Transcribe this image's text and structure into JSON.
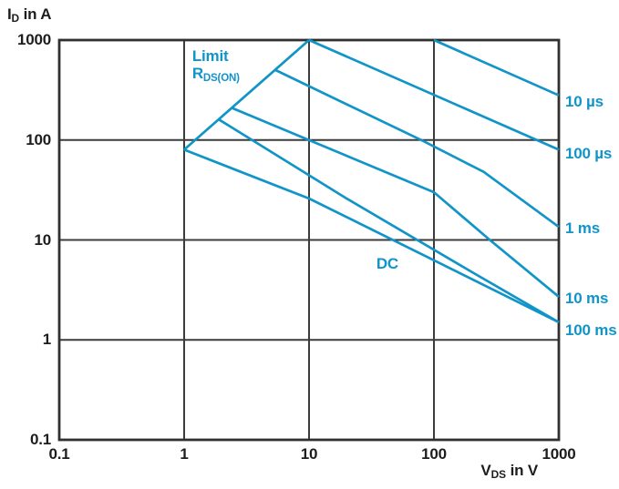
{
  "chart_data": {
    "type": "line",
    "description": "MOSFET safe operating area (SOA): drain current vs drain-source voltage, log-log",
    "colors": {
      "curve": "#1194c7",
      "grid": "#3c3c3c",
      "border": "#303030",
      "text": "#1d1d1d"
    },
    "grid": "major-decades-on",
    "legend_position": "right-edge-labels",
    "x_axis": {
      "scale": "log",
      "min": 0.1,
      "max": 1000,
      "title": {
        "main": "V",
        "sub": "DS",
        "rest": " in V"
      },
      "ticks": [
        {
          "v": 0.1,
          "label": "0.1"
        },
        {
          "v": 1,
          "label": "1"
        },
        {
          "v": 10,
          "label": "10"
        },
        {
          "v": 100,
          "label": "100"
        },
        {
          "v": 1000,
          "label": "1000"
        }
      ]
    },
    "y_axis": {
      "scale": "log",
      "min": 0.1,
      "max": 1000,
      "title": {
        "main": "I",
        "sub": "D",
        "rest": " in A"
      },
      "ticks": [
        {
          "v": 0.1,
          "label": "0.1"
        },
        {
          "v": 1,
          "label": "1"
        },
        {
          "v": 10,
          "label": "10"
        },
        {
          "v": 100,
          "label": "100"
        },
        {
          "v": 1000,
          "label": "1000"
        }
      ]
    },
    "series": [
      {
        "id": "limit-rdson",
        "name": "Limit RDS(ON)",
        "label": "",
        "points": [
          [
            1.0,
            80
          ],
          [
            10,
            1000
          ]
        ]
      },
      {
        "id": "pulse-10us",
        "name": "10 µs",
        "label": "10 µs",
        "label_dy": 7,
        "points": [
          [
            100,
            1000
          ],
          [
            1000,
            280
          ]
        ]
      },
      {
        "id": "pulse-100us",
        "name": "100 µs",
        "label": "100 µs",
        "label_dy": 5,
        "points": [
          [
            10,
            1000
          ],
          [
            1000,
            80
          ]
        ]
      },
      {
        "id": "pulse-1ms",
        "name": "1 ms",
        "label": "1 ms",
        "label_dy": 2,
        "points": [
          [
            5.4,
            500
          ],
          [
            83,
            97
          ],
          [
            250,
            48
          ],
          [
            1000,
            13.5
          ]
        ]
      },
      {
        "id": "pulse-10ms",
        "name": "10 ms",
        "label": "10 ms",
        "label_dy": 2,
        "points": [
          [
            2.4,
            210
          ],
          [
            100,
            30
          ],
          [
            280,
            10
          ],
          [
            1000,
            2.7
          ]
        ]
      },
      {
        "id": "pulse-100ms",
        "name": "100 ms",
        "label": "100 ms",
        "label_dy": 9,
        "points": [
          [
            1.9,
            160
          ],
          [
            20,
            26
          ],
          [
            200,
            4.8
          ],
          [
            1000,
            1.5
          ]
        ]
      },
      {
        "id": "dc",
        "name": "DC",
        "label": "",
        "points": [
          [
            1.0,
            80
          ],
          [
            10,
            26
          ],
          [
            107,
            6.0
          ],
          [
            1000,
            1.5
          ]
        ]
      }
    ],
    "annotations": [
      {
        "id": "limit-rdson-label",
        "line1": "Limit",
        "line2_main": "R",
        "line2_sub": "DS(ON)",
        "v": 1.16,
        "i": 845
      },
      {
        "id": "dc-label",
        "text": "DC",
        "v": 34.6,
        "i": 7.1
      }
    ]
  }
}
